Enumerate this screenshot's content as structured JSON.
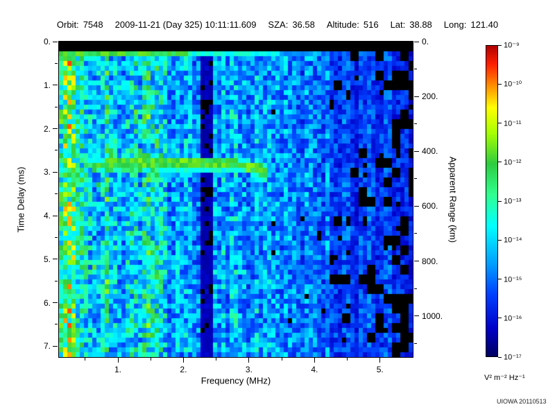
{
  "header": {
    "orbit_label": "Orbit:",
    "orbit_value": "7548",
    "datetime": "2009-11-21 (Day 325) 10:11:11.609",
    "sza_label": "SZA:",
    "sza_value": "36.58",
    "altitude_label": "Altitude:",
    "altitude_value": "516",
    "lat_label": "Lat:",
    "lat_value": "38.88",
    "long_label": "Long:",
    "long_value": "121.40"
  },
  "chart_data": {
    "type": "heatmap",
    "title": "",
    "xlabel": "Frequency (MHz)",
    "ylabel_left": "Time Delay (ms)",
    "ylabel_right": "Apparent Range (km)",
    "x_range": [
      0.1,
      5.5
    ],
    "y_range_ms": [
      0,
      7.25
    ],
    "y_right_range_km": [
      0,
      1150
    ],
    "x_ticks": {
      "values": [
        1,
        2,
        3,
        4,
        5
      ],
      "labels": [
        "1.",
        "2.",
        "3.",
        "4.",
        "5."
      ],
      "minor_step": 0.5
    },
    "y_left_ticks": {
      "values": [
        0,
        1,
        2,
        3,
        4,
        5,
        6,
        7
      ],
      "labels": [
        "0.",
        "1.",
        "2.",
        "3.",
        "4.",
        "5.",
        "6.",
        "7."
      ],
      "minor_step": 0.5
    },
    "y_right_ticks": {
      "values": [
        0,
        200,
        400,
        600,
        800,
        1000
      ],
      "labels": [
        "0.",
        "200.",
        "400.",
        "600.",
        "800.",
        "1000."
      ],
      "minor_step": 100
    },
    "colorbar": {
      "scale": "log",
      "units": "V² m⁻² Hz⁻¹",
      "tick_labels": [
        "10⁻⁹",
        "10⁻¹⁰",
        "10⁻¹¹",
        "10⁻¹²",
        "10⁻¹³",
        "10⁻¹⁴",
        "10⁻¹⁵",
        "10⁻¹⁶",
        "10⁻¹⁷"
      ],
      "min_exponent": -17,
      "max_exponent": -9,
      "stops": [
        {
          "pos": 0.0,
          "color": "#000060"
        },
        {
          "pos": 0.09,
          "color": "#0000c8"
        },
        {
          "pos": 0.2,
          "color": "#0040ff"
        },
        {
          "pos": 0.3,
          "color": "#00a0ff"
        },
        {
          "pos": 0.42,
          "color": "#00ffff"
        },
        {
          "pos": 0.52,
          "color": "#30ff90"
        },
        {
          "pos": 0.62,
          "color": "#2ecc40"
        },
        {
          "pos": 0.72,
          "color": "#a8ff00"
        },
        {
          "pos": 0.8,
          "color": "#ffff00"
        },
        {
          "pos": 0.88,
          "color": "#ff8000"
        },
        {
          "pos": 0.94,
          "color": "#ff2000"
        },
        {
          "pos": 1.0,
          "color": "#b00000"
        }
      ]
    },
    "features": {
      "black_below": 0.05,
      "top_black_band_ms": 0.18,
      "plasma_line": {
        "t_ms": 0.25,
        "strong_f_end_MHz": 2.1,
        "f_end_MHz": 3.45
      },
      "echo_trace": {
        "f_start_MHz": 0.62,
        "f_end_MHz": 3.27,
        "t_main_ms": 2.8,
        "t_start_ms": 2.9,
        "bend_f_MHz": 2.8,
        "t_end_ms": 3.0,
        "blob_f_MHz": [
          0.65,
          1.35
        ],
        "blob_t_center_ms": 2.68,
        "blob_halfwidth_ms": 0.28
      },
      "dark_column_MHz": [
        2.28,
        2.44
      ],
      "dark_patches_above_MHz": 4.25,
      "bright_noise_below_MHz": 1.7
    }
  },
  "credit": "UIOWA 20110513"
}
